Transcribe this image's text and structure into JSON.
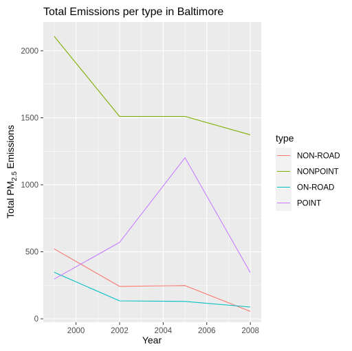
{
  "chart_data": {
    "type": "line",
    "title": "Total Emissions per type in Baltimore",
    "xlabel": "Year",
    "ylabel": {
      "prefix": "Total PM",
      "subscript": "2.5",
      "suffix": " Emissions"
    },
    "x": [
      1999,
      2002,
      2005,
      2008
    ],
    "xlim": [
      1998.5,
      2008.5
    ],
    "ylim": [
      -25,
      2215
    ],
    "x_ticks": [
      2000,
      2002,
      2004,
      2006,
      2008
    ],
    "y_ticks": [
      0,
      500,
      1000,
      1500,
      2000
    ],
    "x_tick_labels": [
      "2000",
      "2002",
      "2004",
      "2006",
      "2008"
    ],
    "y_tick_labels": [
      "0",
      "500",
      "1000",
      "1500",
      "2000"
    ],
    "grid": true,
    "legend": {
      "title": "type",
      "placement": "right"
    },
    "series": [
      {
        "name": "NON-ROAD",
        "color": "#F8766D",
        "values": [
          522,
          242,
          248,
          55
        ]
      },
      {
        "name": "NONPOINT",
        "color": "#7CAE00",
        "values": [
          2108,
          1510,
          1510,
          1373
        ]
      },
      {
        "name": "ON-ROAD",
        "color": "#00BFC4",
        "values": [
          347,
          134,
          130,
          88
        ]
      },
      {
        "name": "POINT",
        "color": "#C77CFF",
        "values": [
          297,
          570,
          1202,
          345
        ]
      }
    ]
  },
  "colors": {
    "panel_background": "#EBEBEB",
    "grid_major": "#FFFFFF",
    "legend_key_background": "#F2F2F2"
  }
}
